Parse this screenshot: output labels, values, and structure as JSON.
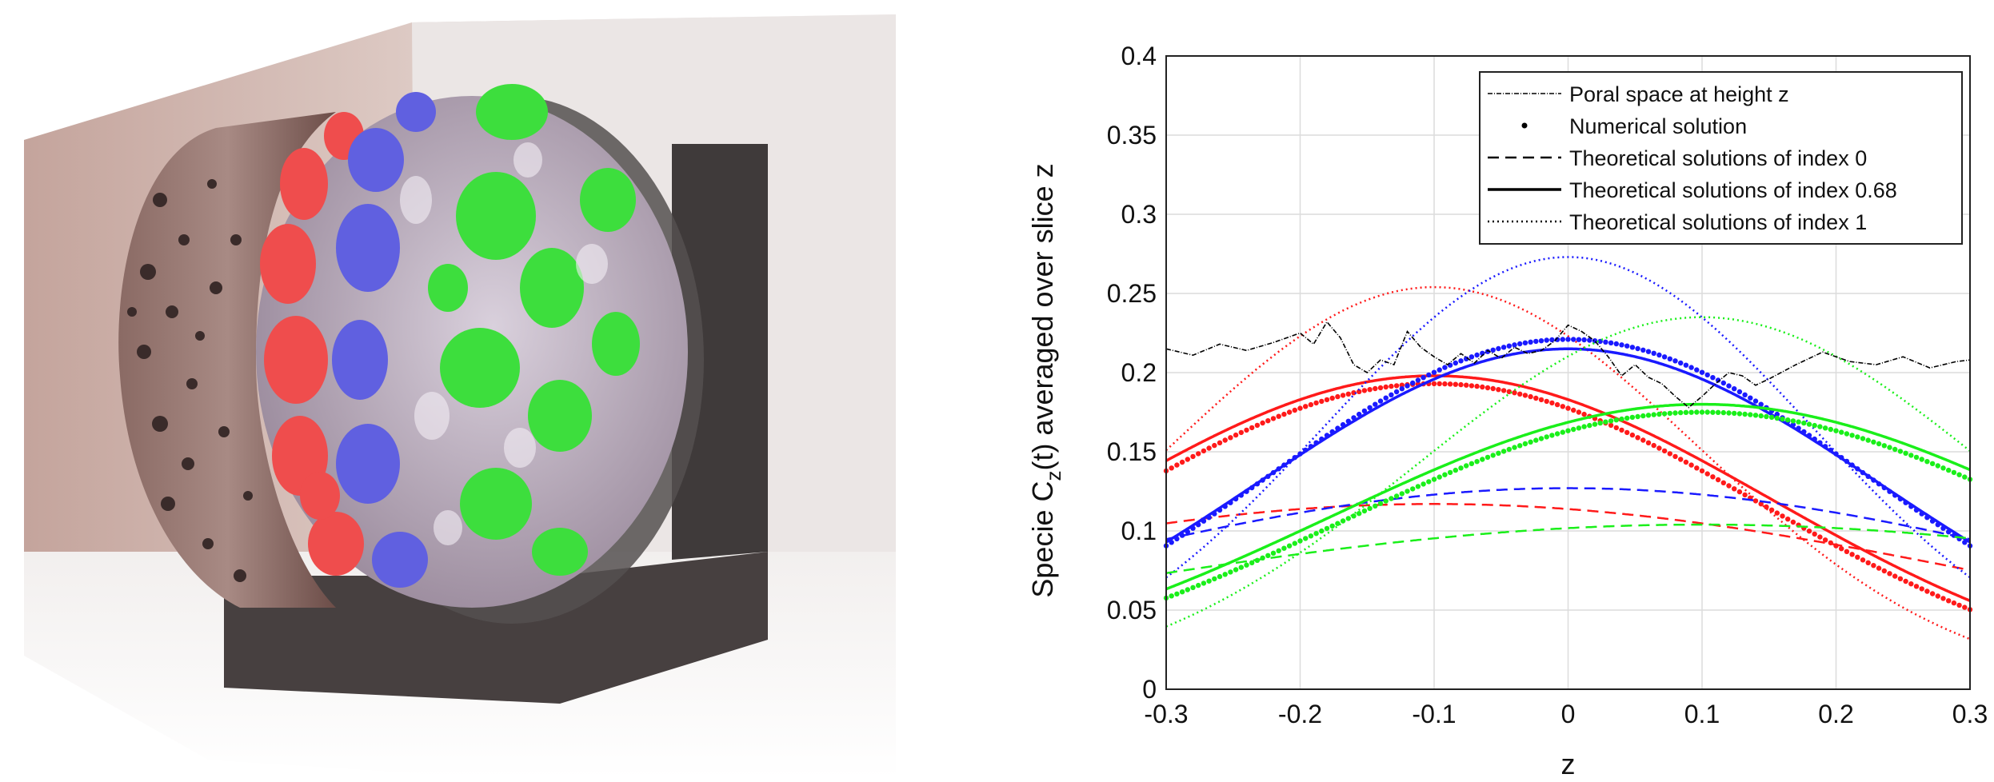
{
  "render": {
    "icon": "porous-cylinder-3d-render"
  },
  "chart_data": {
    "type": "line",
    "xlabel": "z",
    "ylabel_main": "Specie C",
    "ylabel_sub": "z",
    "ylabel_rest": "(t) averaged over slice z",
    "xlim": [
      -0.3,
      0.3
    ],
    "ylim": [
      0,
      0.4
    ],
    "xticks": [
      "-0.3",
      "-0.2",
      "-0.1",
      "0",
      "0.1",
      "0.2",
      "0.3"
    ],
    "yticks": [
      "0",
      "0.05",
      "0.1",
      "0.15",
      "0.2",
      "0.25",
      "0.3",
      "0.35",
      "0.4"
    ],
    "grid": true,
    "legend_position": "top-right",
    "legend": [
      "Poral space at height z",
      "Numerical solution",
      "Theoretical solutions of index 0",
      "Theoretical solutions of index 0.68",
      "Theoretical solutions of index 1"
    ],
    "colors": {
      "red": "#ff1a1a",
      "blue": "#1a1aff",
      "green": "#1aef1a",
      "black": "#000000"
    },
    "peaks": [
      {
        "color": "red",
        "center": -0.1,
        "index_0_peak": 0.117,
        "index_0_68_peak": 0.198,
        "index_1_peak": 0.254,
        "numerical_peak": 0.193
      },
      {
        "color": "blue",
        "center": 0.0,
        "index_0_peak": 0.127,
        "index_0_68_peak": 0.215,
        "index_1_peak": 0.273,
        "numerical_peak": 0.221
      },
      {
        "color": "green",
        "center": 0.1,
        "index_0_peak": 0.104,
        "index_0_68_peak": 0.18,
        "index_1_peak": 0.235,
        "numerical_peak": 0.175
      }
    ],
    "poral_space": {
      "x": [
        -0.3,
        -0.28,
        -0.26,
        -0.24,
        -0.22,
        -0.2,
        -0.19,
        -0.18,
        -0.17,
        -0.16,
        -0.15,
        -0.14,
        -0.13,
        -0.12,
        -0.11,
        -0.1,
        -0.09,
        -0.08,
        -0.07,
        -0.06,
        -0.05,
        -0.04,
        -0.03,
        -0.02,
        -0.01,
        0.0,
        0.01,
        0.02,
        0.03,
        0.04,
        0.05,
        0.06,
        0.07,
        0.08,
        0.09,
        0.1,
        0.11,
        0.12,
        0.13,
        0.14,
        0.15,
        0.17,
        0.19,
        0.21,
        0.23,
        0.25,
        0.27,
        0.29,
        0.3
      ],
      "y": [
        0.215,
        0.211,
        0.218,
        0.214,
        0.219,
        0.225,
        0.218,
        0.232,
        0.222,
        0.205,
        0.2,
        0.208,
        0.205,
        0.226,
        0.216,
        0.21,
        0.205,
        0.212,
        0.206,
        0.214,
        0.209,
        0.216,
        0.212,
        0.214,
        0.22,
        0.23,
        0.226,
        0.22,
        0.21,
        0.198,
        0.205,
        0.197,
        0.193,
        0.185,
        0.178,
        0.185,
        0.193,
        0.2,
        0.198,
        0.192,
        0.196,
        0.205,
        0.213,
        0.207,
        0.205,
        0.21,
        0.203,
        0.207,
        0.208
      ]
    }
  }
}
